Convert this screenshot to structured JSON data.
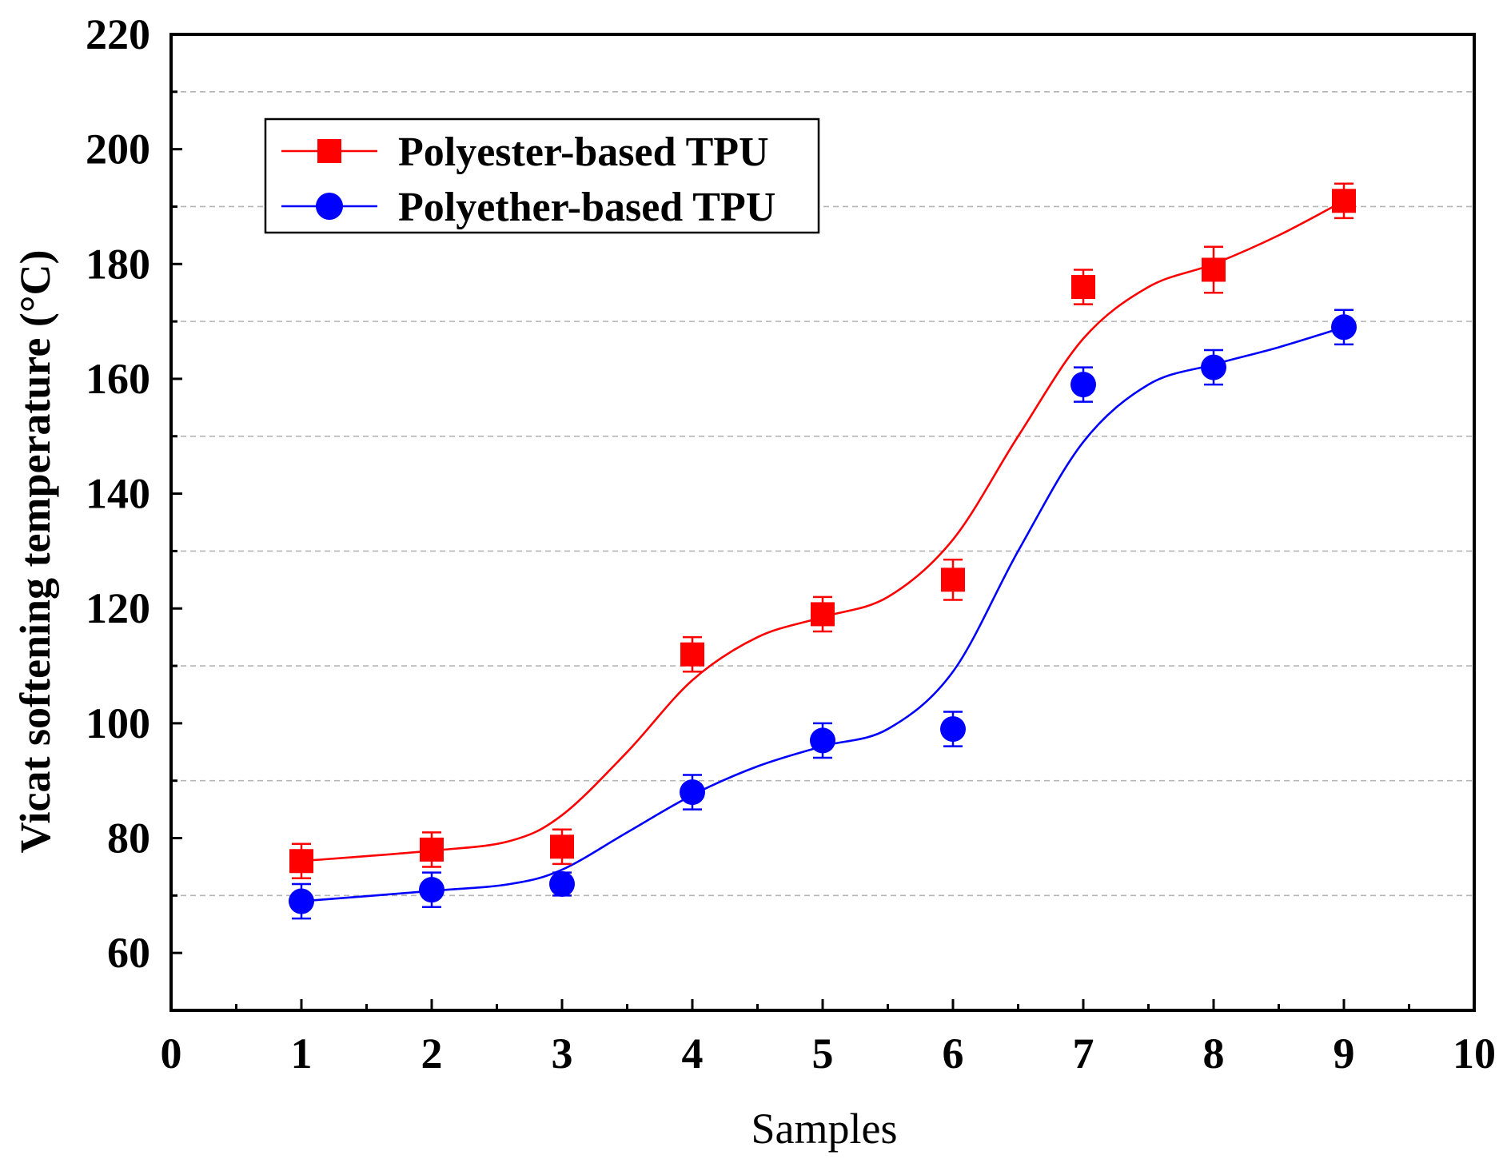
{
  "chart_data": {
    "type": "line",
    "title": "",
    "xlabel": "Samples",
    "ylabel": "Vicat softening temperature (°C)",
    "xlim": [
      0,
      10
    ],
    "ylim": [
      50,
      220
    ],
    "x_ticks": [
      0,
      1,
      2,
      3,
      4,
      5,
      6,
      7,
      8,
      9,
      10
    ],
    "x_tick_labels": [
      "0",
      "1",
      "2",
      "3",
      "4",
      "5",
      "6",
      "7",
      "8",
      "9",
      "10"
    ],
    "y_ticks": [
      60,
      80,
      100,
      120,
      140,
      160,
      180,
      200,
      220
    ],
    "y_tick_labels": [
      "60",
      "80",
      "100",
      "120",
      "140",
      "160",
      "180",
      "200",
      "220"
    ],
    "grid": "horizontal dashed",
    "legend_position": "top-left",
    "series": [
      {
        "name": "Polyester-based TPU",
        "color": "#ff0000",
        "marker": "square",
        "x": [
          1,
          2,
          3,
          4,
          5,
          6,
          7,
          8,
          9
        ],
        "values": [
          76,
          78,
          78.5,
          112,
          119,
          125,
          176,
          179,
          191
        ],
        "errors": [
          3,
          3,
          3,
          3,
          3,
          3.5,
          3,
          4,
          3
        ],
        "fit_curve": [
          [
            1,
            76
          ],
          [
            2,
            77.8
          ],
          [
            2.6,
            79.5
          ],
          [
            3,
            84
          ],
          [
            3.5,
            95
          ],
          [
            4,
            107.5
          ],
          [
            4.5,
            115
          ],
          [
            5,
            118.5
          ],
          [
            5.5,
            122
          ],
          [
            6,
            132
          ],
          [
            6.5,
            150
          ],
          [
            7,
            167
          ],
          [
            7.5,
            176
          ],
          [
            8,
            180
          ],
          [
            8.5,
            185
          ],
          [
            9,
            191
          ]
        ]
      },
      {
        "name": "Polyether-based TPU",
        "color": "#0000ff",
        "marker": "circle",
        "x": [
          1,
          2,
          3,
          4,
          5,
          6,
          7,
          8,
          9
        ],
        "values": [
          69,
          71,
          72,
          88,
          97,
          99,
          159,
          162,
          169
        ],
        "errors": [
          3,
          3,
          2,
          3,
          3,
          3,
          3,
          3,
          3
        ],
        "fit_curve": [
          [
            1,
            69
          ],
          [
            2,
            70.8
          ],
          [
            2.6,
            72
          ],
          [
            3,
            74.5
          ],
          [
            3.5,
            81
          ],
          [
            4,
            87.5
          ],
          [
            4.5,
            92.5
          ],
          [
            5,
            96
          ],
          [
            5.5,
            99
          ],
          [
            6,
            109
          ],
          [
            6.5,
            130
          ],
          [
            7,
            149
          ],
          [
            7.5,
            159
          ],
          [
            8,
            162.5
          ],
          [
            8.5,
            165.5
          ],
          [
            9,
            169
          ]
        ]
      }
    ]
  }
}
